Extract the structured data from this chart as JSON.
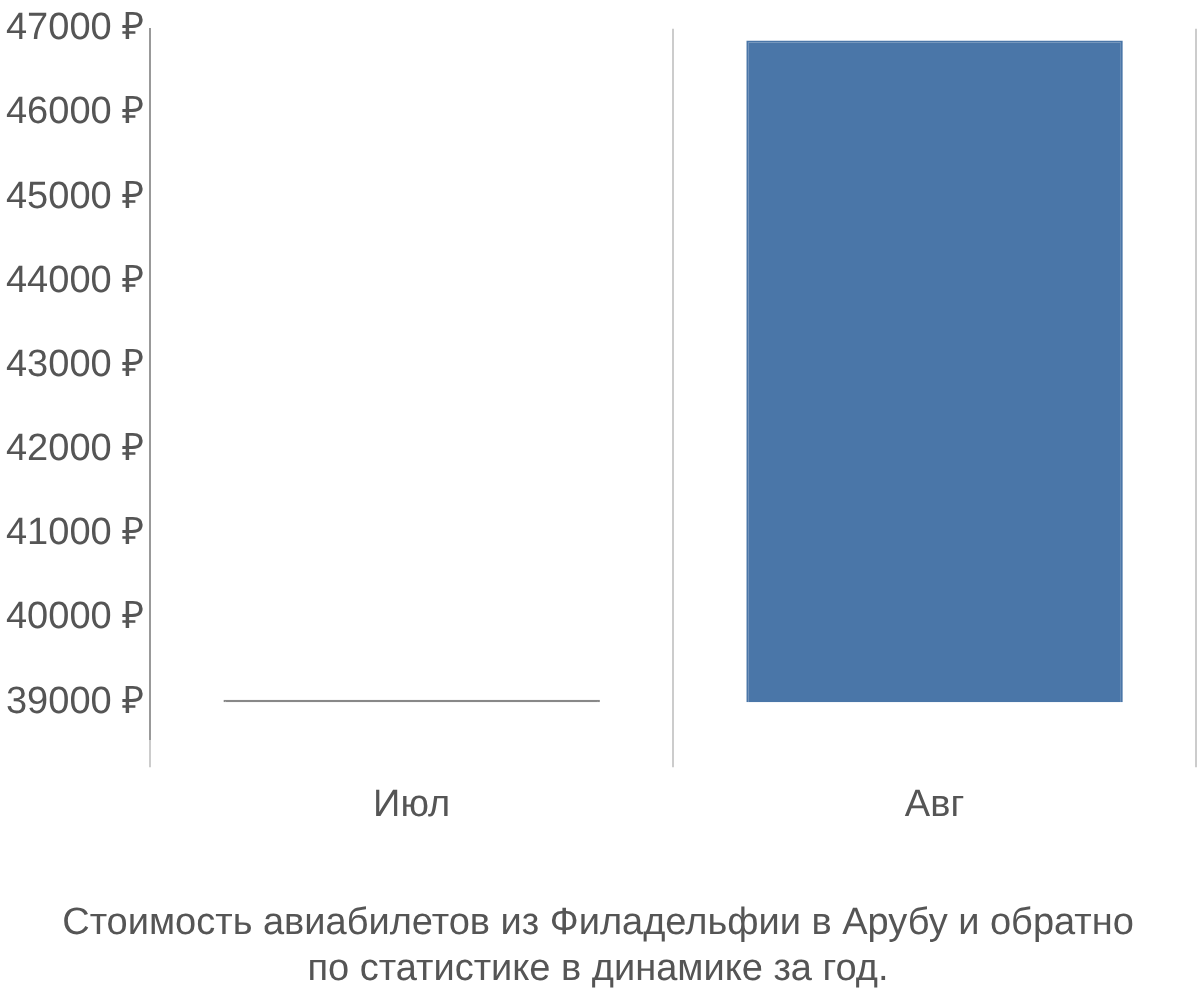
{
  "chart_data": {
    "type": "bar",
    "title": "Стоимость авиабилетов из Филадельфии в Арубу и обратно\nпо статистике в динамике за год.",
    "categories": [
      "Июл",
      "Авг"
    ],
    "base": [
      39000,
      39000
    ],
    "values": [
      30,
      7860
    ],
    "colors": [
      "#888888",
      "#4a76a8"
    ],
    "ylim": [
      38560,
      47000
    ],
    "yticks": [
      {
        "value": 39000,
        "label": "39000 ₽"
      },
      {
        "value": 40000,
        "label": "40000 ₽"
      },
      {
        "value": 41000,
        "label": "41000 ₽"
      },
      {
        "value": 42000,
        "label": "42000 ₽"
      },
      {
        "value": 43000,
        "label": "43000 ₽"
      },
      {
        "value": 44000,
        "label": "44000 ₽"
      },
      {
        "value": 45000,
        "label": "45000 ₽"
      },
      {
        "value": 46000,
        "label": "46000 ₽"
      },
      {
        "value": 47000,
        "label": "47000 ₽"
      }
    ],
    "grid": "x",
    "legend": false
  }
}
